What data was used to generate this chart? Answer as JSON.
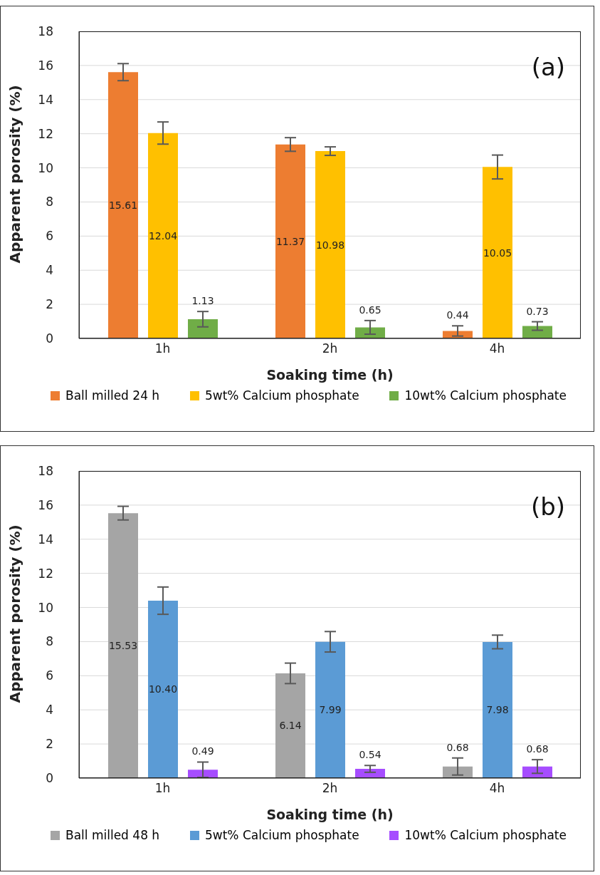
{
  "chart_data": [
    {
      "type": "bar",
      "annotations": [
        "(a)"
      ],
      "xlabel": "Soaking time (h)",
      "ylabel": "Apparent porosity (%)",
      "categories": [
        "1h",
        "2h",
        "4h"
      ],
      "ylim": [
        0,
        18
      ],
      "yticks": [
        0,
        2,
        4,
        6,
        8,
        10,
        12,
        14,
        16,
        18
      ],
      "grid": "y",
      "legend": "bottom",
      "series": [
        {
          "name": "Ball milled 24 h",
          "color": "#ed7d31",
          "values": [
            15.61,
            11.37,
            0.44
          ],
          "errors": [
            0.5,
            0.4,
            0.3
          ],
          "value_labels": [
            "15.61",
            "11.37",
            "0.44"
          ]
        },
        {
          "name": "5wt% Calcium phosphate",
          "color": "#ffc000",
          "values": [
            12.04,
            10.98,
            10.05
          ],
          "errors": [
            0.65,
            0.25,
            0.7
          ],
          "value_labels": [
            "12.04",
            "10.98",
            "10.05"
          ]
        },
        {
          "name": "10wt% Calcium phosphate",
          "color": "#70ad47",
          "values": [
            1.13,
            0.65,
            0.73
          ],
          "errors": [
            0.45,
            0.4,
            0.25
          ],
          "value_labels": [
            "1.13",
            "0.65",
            "0.73"
          ]
        }
      ]
    },
    {
      "type": "bar",
      "annotations": [
        "(b)"
      ],
      "xlabel": "Soaking time (h)",
      "ylabel": "Apparent porosity (%)",
      "categories": [
        "1h",
        "2h",
        "4h"
      ],
      "ylim": [
        0,
        18
      ],
      "yticks": [
        0,
        2,
        4,
        6,
        8,
        10,
        12,
        14,
        16,
        18
      ],
      "grid": "y",
      "legend": "bottom",
      "series": [
        {
          "name": "Ball milled 48 h",
          "color": "#a5a5a5",
          "values": [
            15.53,
            6.14,
            0.68
          ],
          "errors": [
            0.4,
            0.6,
            0.5
          ],
          "value_labels": [
            "15.53",
            "6.14",
            "0.68"
          ]
        },
        {
          "name": "5wt% Calcium phosphate",
          "color": "#5b9bd5",
          "values": [
            10.4,
            7.99,
            7.98
          ],
          "errors": [
            0.8,
            0.6,
            0.4
          ],
          "value_labels": [
            "10.40",
            "7.99",
            "7.98"
          ]
        },
        {
          "name": "10wt% Calcium phosphate",
          "color": "#a64dff",
          "values": [
            0.49,
            0.54,
            0.68
          ],
          "errors": [
            0.45,
            0.2,
            0.4
          ],
          "value_labels": [
            "0.49",
            "0.54",
            "0.68"
          ]
        }
      ]
    }
  ]
}
